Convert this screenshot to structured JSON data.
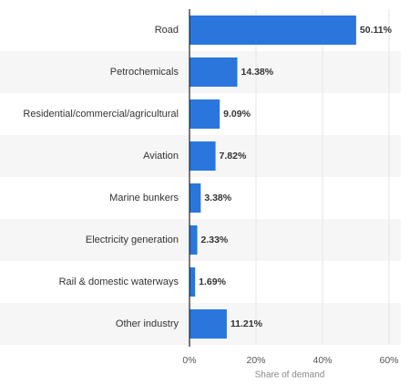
{
  "chart_data": {
    "type": "bar",
    "orientation": "horizontal",
    "x_label": "Share of demand",
    "categories": [
      "Road",
      "Petrochemicals",
      "Residential/commercial/agricultural",
      "Aviation",
      "Marine bunkers",
      "Electricity generation",
      "Rail & domestic waterways",
      "Other industry"
    ],
    "values": [
      50.11,
      14.38,
      9.09,
      7.82,
      3.38,
      2.33,
      1.69,
      11.21
    ],
    "value_labels": [
      "50.11%",
      "14.38%",
      "9.09%",
      "7.82%",
      "3.38%",
      "2.33%",
      "1.69%",
      "11.21%"
    ],
    "color": "#2a76dd",
    "xlim": [
      0,
      60
    ],
    "xticks": [
      {
        "value": 0,
        "label": "0%"
      },
      {
        "value": 20,
        "label": "20%"
      },
      {
        "value": 40,
        "label": "40%"
      },
      {
        "value": 60,
        "label": "60%"
      }
    ],
    "grid": true
  }
}
